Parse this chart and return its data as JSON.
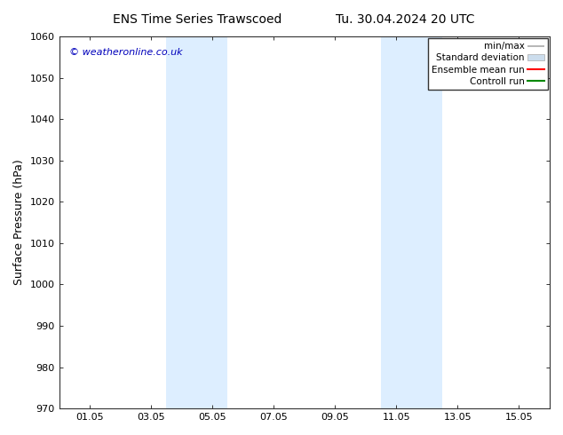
{
  "title_left": "ENS Time Series Trawscoed",
  "title_right": "Tu. 30.04.2024 20 UTC",
  "ylabel": "Surface Pressure (hPa)",
  "xlim": [
    0,
    16
  ],
  "ylim": [
    970,
    1060
  ],
  "yticks": [
    970,
    980,
    990,
    1000,
    1010,
    1020,
    1030,
    1040,
    1050,
    1060
  ],
  "xtick_labels": [
    "01.05",
    "03.05",
    "05.05",
    "07.05",
    "09.05",
    "11.05",
    "13.05",
    "15.05"
  ],
  "xtick_positions": [
    1,
    3,
    5,
    7,
    9,
    11,
    13,
    15
  ],
  "shaded_regions": [
    {
      "xmin": 3.5,
      "xmax": 5.5,
      "color": "#ddeeff"
    },
    {
      "xmin": 10.5,
      "xmax": 12.5,
      "color": "#ddeeff"
    }
  ],
  "watermark_text": "© weatheronline.co.uk",
  "watermark_color": "#0000bb",
  "background_color": "#ffffff",
  "plot_bg_color": "#ffffff",
  "legend_entries": [
    {
      "label": "min/max",
      "color": "#aaaaaa",
      "style": "line_with_caps"
    },
    {
      "label": "Standard deviation",
      "color": "#ccdded",
      "style": "filled_rect"
    },
    {
      "label": "Ensemble mean run",
      "color": "#ff0000",
      "style": "line"
    },
    {
      "label": "Controll run",
      "color": "#008800",
      "style": "line"
    }
  ],
  "title_fontsize": 10,
  "tick_fontsize": 8,
  "ylabel_fontsize": 9,
  "watermark_fontsize": 8,
  "legend_fontsize": 7.5
}
